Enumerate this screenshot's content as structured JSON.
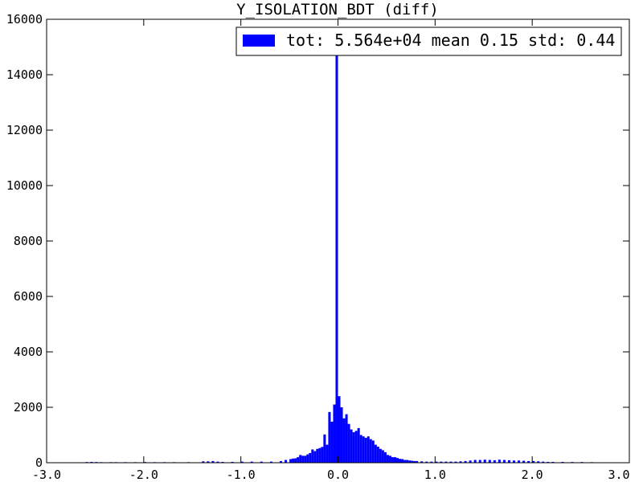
{
  "chart_data": {
    "type": "bar",
    "title": "Y_ISOLATION_BDT (diff)",
    "xlabel": "",
    "ylabel": "",
    "xlim": [
      -3.0,
      3.0
    ],
    "ylim": [
      0,
      16000
    ],
    "grid": false,
    "legend_position": "top-right",
    "xticks": [
      "-3.0",
      "-2.0",
      "-1.0",
      "0.0",
      "1.0",
      "2.0",
      "3.0"
    ],
    "yticks": [
      "0",
      "2000",
      "4000",
      "6000",
      "8000",
      "10000",
      "12000",
      "14000",
      "16000"
    ],
    "series": [
      {
        "name": "tot: 5.564e+04 mean 0.15 std: 0.44",
        "color": "#0000ff",
        "bin_width": 0.025,
        "bins": [
          [
            -2.65,
            15
          ],
          [
            -2.6,
            25
          ],
          [
            -2.55,
            30
          ],
          [
            -2.5,
            25
          ],
          [
            -2.45,
            20
          ],
          [
            -2.35,
            20
          ],
          [
            -2.3,
            20
          ],
          [
            -2.2,
            20
          ],
          [
            -2.1,
            20
          ],
          [
            -2.0,
            25
          ],
          [
            -1.9,
            20
          ],
          [
            -1.8,
            20
          ],
          [
            -1.7,
            20
          ],
          [
            -1.55,
            20
          ],
          [
            -1.4,
            50
          ],
          [
            -1.35,
            50
          ],
          [
            -1.3,
            60
          ],
          [
            -1.25,
            40
          ],
          [
            -1.2,
            30
          ],
          [
            -1.1,
            30
          ],
          [
            -1.0,
            40
          ],
          [
            -0.9,
            40
          ],
          [
            -0.8,
            40
          ],
          [
            -0.7,
            40
          ],
          [
            -0.6,
            60
          ],
          [
            -0.55,
            100
          ],
          [
            -0.5,
            130
          ],
          [
            -0.475,
            150
          ],
          [
            -0.45,
            160
          ],
          [
            -0.425,
            200
          ],
          [
            -0.4,
            280
          ],
          [
            -0.375,
            250
          ],
          [
            -0.35,
            250
          ],
          [
            -0.325,
            300
          ],
          [
            -0.3,
            350
          ],
          [
            -0.275,
            480
          ],
          [
            -0.25,
            420
          ],
          [
            -0.225,
            500
          ],
          [
            -0.2,
            530
          ],
          [
            -0.175,
            570
          ],
          [
            -0.15,
            1020
          ],
          [
            -0.125,
            650
          ],
          [
            -0.1,
            1830
          ],
          [
            -0.075,
            1480
          ],
          [
            -0.05,
            2100
          ],
          [
            -0.025,
            14800
          ],
          [
            0.0,
            2400
          ],
          [
            0.025,
            2000
          ],
          [
            0.05,
            1600
          ],
          [
            0.075,
            1750
          ],
          [
            0.1,
            1400
          ],
          [
            0.125,
            1200
          ],
          [
            0.15,
            1100
          ],
          [
            0.175,
            1150
          ],
          [
            0.2,
            1250
          ],
          [
            0.225,
            1000
          ],
          [
            0.25,
            950
          ],
          [
            0.275,
            900
          ],
          [
            0.3,
            950
          ],
          [
            0.325,
            850
          ],
          [
            0.35,
            800
          ],
          [
            0.375,
            650
          ],
          [
            0.4,
            580
          ],
          [
            0.425,
            500
          ],
          [
            0.45,
            450
          ],
          [
            0.475,
            380
          ],
          [
            0.5,
            280
          ],
          [
            0.525,
            250
          ],
          [
            0.55,
            200
          ],
          [
            0.575,
            200
          ],
          [
            0.6,
            170
          ],
          [
            0.625,
            140
          ],
          [
            0.65,
            130
          ],
          [
            0.675,
            100
          ],
          [
            0.7,
            100
          ],
          [
            0.725,
            80
          ],
          [
            0.75,
            70
          ],
          [
            0.775,
            60
          ],
          [
            0.8,
            60
          ],
          [
            0.85,
            50
          ],
          [
            0.9,
            40
          ],
          [
            0.95,
            40
          ],
          [
            1.0,
            40
          ],
          [
            1.05,
            40
          ],
          [
            1.1,
            40
          ],
          [
            1.15,
            40
          ],
          [
            1.2,
            40
          ],
          [
            1.25,
            50
          ],
          [
            1.3,
            60
          ],
          [
            1.35,
            80
          ],
          [
            1.4,
            100
          ],
          [
            1.45,
            100
          ],
          [
            1.5,
            110
          ],
          [
            1.55,
            100
          ],
          [
            1.6,
            90
          ],
          [
            1.65,
            110
          ],
          [
            1.7,
            100
          ],
          [
            1.75,
            90
          ],
          [
            1.8,
            80
          ],
          [
            1.85,
            80
          ],
          [
            1.9,
            70
          ],
          [
            1.95,
            60
          ],
          [
            2.0,
            60
          ],
          [
            2.05,
            50
          ],
          [
            2.1,
            40
          ],
          [
            2.15,
            30
          ],
          [
            2.2,
            30
          ],
          [
            2.3,
            30
          ],
          [
            2.4,
            25
          ],
          [
            2.5,
            25
          ],
          [
            2.6,
            20
          ]
        ]
      }
    ]
  }
}
